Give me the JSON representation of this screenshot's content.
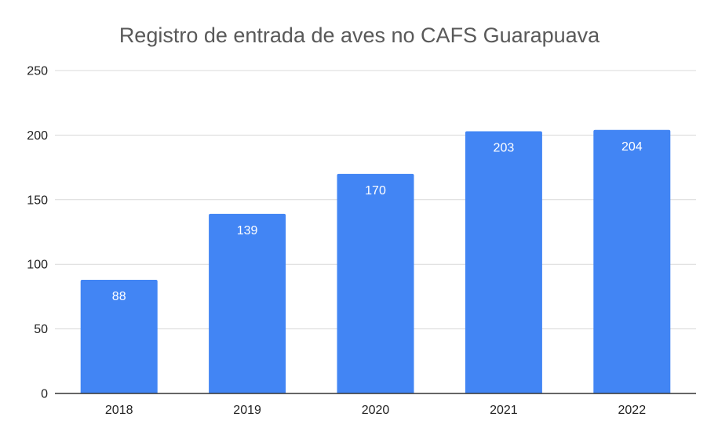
{
  "chart_data": {
    "type": "bar",
    "title": "Registro de entrada de aves no CAFS Guarapuava",
    "xlabel": "",
    "ylabel": "",
    "categories": [
      "2018",
      "2019",
      "2020",
      "2021",
      "2022"
    ],
    "values": [
      88,
      139,
      170,
      203,
      204
    ],
    "data_labels": [
      "88",
      "139",
      "170",
      "203",
      "204"
    ],
    "ylim": [
      0,
      250
    ],
    "yticks": [
      0,
      50,
      100,
      150,
      200,
      250
    ],
    "ytick_labels": [
      "0",
      "50",
      "100",
      "150",
      "200",
      "250"
    ],
    "grid": true,
    "legend": "none",
    "colors": {
      "bar": "#4285f4",
      "grid": "#d9d9d9",
      "axis": "#333333",
      "title": "#595959",
      "tick_text": "#222222",
      "data_label_text": "#ffffff"
    }
  }
}
